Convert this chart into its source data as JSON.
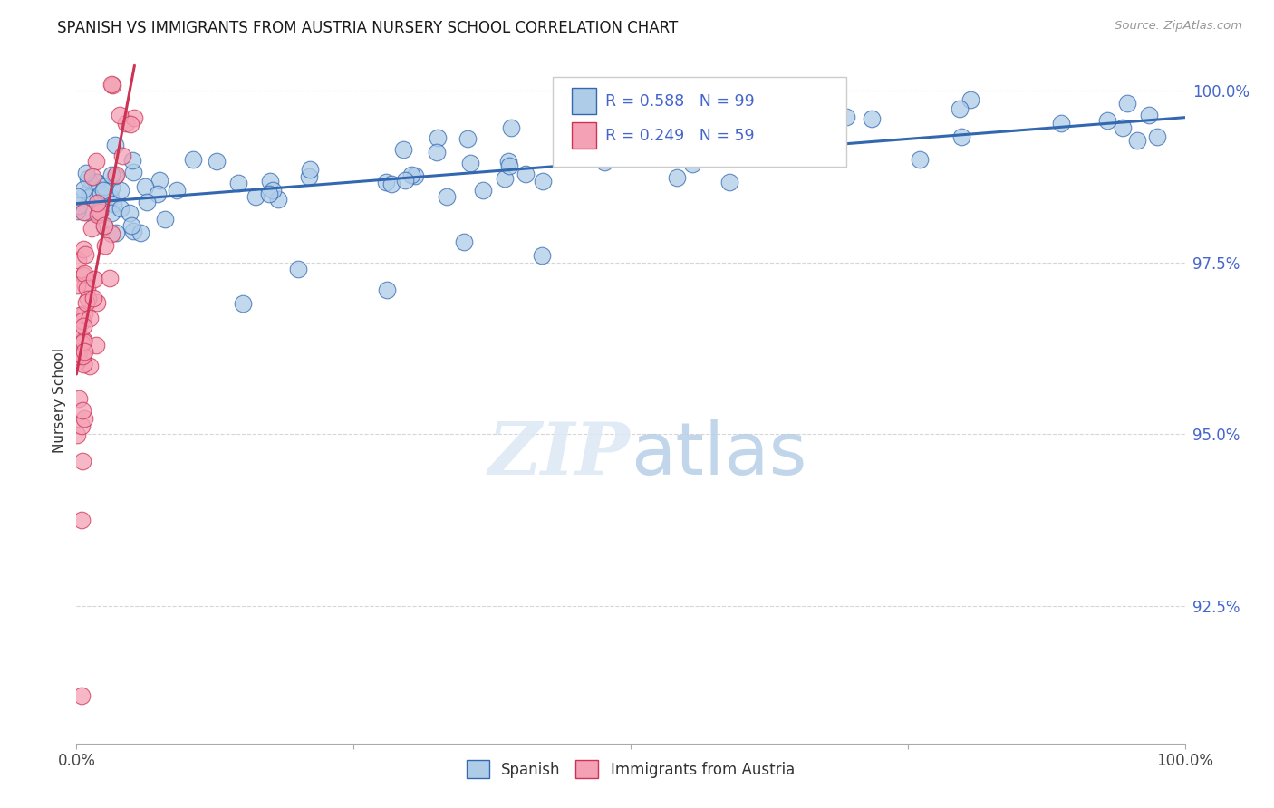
{
  "title": "SPANISH VS IMMIGRANTS FROM AUSTRIA NURSERY SCHOOL CORRELATION CHART",
  "source_text": "Source: ZipAtlas.com",
  "ylabel": "Nursery School",
  "legend_spanish": "Spanish",
  "legend_austria": "Immigrants from Austria",
  "R_spanish": 0.588,
  "N_spanish": 99,
  "R_austria": 0.249,
  "N_austria": 59,
  "xlim": [
    0.0,
    1.0
  ],
  "ylim": [
    0.905,
    1.005
  ],
  "yticks": [
    0.925,
    0.95,
    0.975,
    1.0
  ],
  "ytick_labels": [
    "92.5%",
    "95.0%",
    "97.5%",
    "100.0%"
  ],
  "color_spanish": "#aecce8",
  "color_austria": "#f4a0b5",
  "color_spanish_line": "#3368b0",
  "color_austria_line": "#cc3355",
  "background_color": "#ffffff",
  "title_fontsize": 12,
  "watermark_color": "#dce8f5",
  "watermark_alpha": 0.85,
  "grid_color": "#cccccc",
  "tick_color_right": "#4466cc",
  "tick_color_bottom": "#444444"
}
